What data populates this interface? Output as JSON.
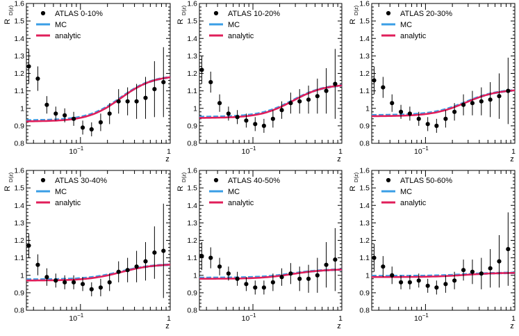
{
  "figure": {
    "ylabel_main": "R",
    "ylabel_sub": "D(z)",
    "xlabel": "z",
    "tick_base": "10",
    "tick_exp": "−1",
    "legend": {
      "data": "ATLAS",
      "mc": "MC",
      "analytic": "analytic"
    }
  },
  "colors": {
    "mc": "#3a9ee6",
    "analytic": "#e01e5a",
    "data": "#000000",
    "axes": "#000000"
  },
  "chart_data": [
    {
      "type": "scatter",
      "title": "ATLAS 0-10%",
      "centrality": "0-10%",
      "xscale": "log",
      "xlim": [
        0.025,
        1.0
      ],
      "ylim": [
        0.8,
        1.6
      ],
      "yticks": [
        0.8,
        0.9,
        1,
        1.1,
        1.2,
        1.3,
        1.4,
        1.5,
        1.6
      ],
      "ytick_labels": [
        "0.8",
        "0.9",
        "1",
        "1.1",
        "1.2",
        "1.3",
        "1.4",
        "1.5",
        "1.6"
      ],
      "xticks": [
        0.1,
        1
      ],
      "xtick_labels": [
        "",
        "1"
      ],
      "series": [
        {
          "name": "ATLAS",
          "kind": "points",
          "x": [
            0.0266,
            0.0335,
            0.0422,
            0.0531,
            0.0668,
            0.0841,
            0.106,
            0.133,
            0.168,
            0.211,
            0.266,
            0.335,
            0.422,
            0.531,
            0.668,
            0.841
          ],
          "y": [
            1.24,
            1.17,
            1.02,
            0.97,
            0.96,
            0.94,
            0.89,
            0.88,
            0.92,
            0.97,
            1.04,
            1.04,
            1.04,
            1.06,
            1.11,
            1.15
          ],
          "yerr": [
            0.1,
            0.07,
            0.05,
            0.04,
            0.04,
            0.04,
            0.04,
            0.04,
            0.05,
            0.06,
            0.07,
            0.08,
            0.1,
            0.12,
            0.16,
            0.2
          ]
        },
        {
          "name": "MC",
          "kind": "line",
          "x": [
            0.025,
            1.0
          ],
          "baseline": 0.93,
          "top": 1.19
        },
        {
          "name": "analytic",
          "kind": "line",
          "x": [
            0.025,
            1.0
          ],
          "baseline": 0.925,
          "top": 1.19
        }
      ]
    },
    {
      "type": "scatter",
      "title": "ATLAS 10-20%",
      "centrality": "10-20%",
      "xscale": "log",
      "xlim": [
        0.025,
        1.0
      ],
      "ylim": [
        0.8,
        1.6
      ],
      "yticks": [
        0.8,
        0.9,
        1,
        1.1,
        1.2,
        1.3,
        1.4,
        1.5,
        1.6
      ],
      "ytick_labels": [
        "0.8",
        "0.9",
        "1",
        "1.1",
        "1.2",
        "1.3",
        "1.4",
        "1.5",
        "1.6"
      ],
      "xticks": [
        0.1,
        1
      ],
      "xtick_labels": [
        "",
        "1"
      ],
      "series": [
        {
          "name": "ATLAS",
          "kind": "points",
          "x": [
            0.0266,
            0.0335,
            0.0422,
            0.0531,
            0.0668,
            0.0841,
            0.106,
            0.133,
            0.168,
            0.211,
            0.266,
            0.335,
            0.422,
            0.531,
            0.668,
            0.841
          ],
          "y": [
            1.22,
            1.15,
            1.03,
            0.97,
            0.95,
            0.93,
            0.91,
            0.9,
            0.94,
            0.99,
            1.03,
            1.04,
            1.05,
            1.07,
            1.1,
            1.14
          ],
          "yerr": [
            0.08,
            0.06,
            0.05,
            0.04,
            0.04,
            0.04,
            0.04,
            0.04,
            0.05,
            0.05,
            0.06,
            0.07,
            0.08,
            0.1,
            0.13,
            0.2
          ]
        },
        {
          "name": "MC",
          "kind": "line",
          "x": [
            0.025,
            1.0
          ],
          "baseline": 0.95,
          "top": 1.14
        },
        {
          "name": "analytic",
          "kind": "line",
          "x": [
            0.025,
            1.0
          ],
          "baseline": 0.945,
          "top": 1.14
        }
      ]
    },
    {
      "type": "scatter",
      "title": "ATLAS 20-30%",
      "centrality": "20-30%",
      "xscale": "log",
      "xlim": [
        0.025,
        1.0
      ],
      "ylim": [
        0.8,
        1.6
      ],
      "yticks": [
        0.8,
        0.9,
        1,
        1.1,
        1.2,
        1.3,
        1.4,
        1.5,
        1.6
      ],
      "ytick_labels": [
        "0.8",
        "0.9",
        "1",
        "1.1",
        "1.2",
        "1.3",
        "1.4",
        "1.5",
        "1.6"
      ],
      "xticks": [
        0.1,
        1
      ],
      "xtick_labels": [
        "",
        "1"
      ],
      "series": [
        {
          "name": "ATLAS",
          "kind": "points",
          "x": [
            0.0266,
            0.0335,
            0.0422,
            0.0531,
            0.0668,
            0.0841,
            0.106,
            0.133,
            0.168,
            0.211,
            0.266,
            0.335,
            0.422,
            0.531,
            0.668,
            0.841
          ],
          "y": [
            1.16,
            1.12,
            1.03,
            0.98,
            0.97,
            0.94,
            0.91,
            0.9,
            0.94,
            0.98,
            1.02,
            1.03,
            1.04,
            1.05,
            1.07,
            1.1
          ],
          "yerr": [
            0.08,
            0.06,
            0.05,
            0.04,
            0.04,
            0.04,
            0.04,
            0.04,
            0.05,
            0.05,
            0.06,
            0.07,
            0.08,
            0.1,
            0.13,
            0.19
          ]
        },
        {
          "name": "MC",
          "kind": "line",
          "x": [
            0.025,
            1.0
          ],
          "baseline": 0.96,
          "top": 1.11
        },
        {
          "name": "analytic",
          "kind": "line",
          "x": [
            0.025,
            1.0
          ],
          "baseline": 0.955,
          "top": 1.11
        }
      ]
    },
    {
      "type": "scatter",
      "title": "ATLAS 30-40%",
      "centrality": "30-40%",
      "xscale": "log",
      "xlim": [
        0.025,
        1.0
      ],
      "ylim": [
        0.8,
        1.6
      ],
      "yticks": [
        0.8,
        0.9,
        1,
        1.1,
        1.2,
        1.3,
        1.4,
        1.5,
        1.6
      ],
      "ytick_labels": [
        "0.8",
        "0.9",
        "1",
        "1.1",
        "1.2",
        "1.3",
        "1.4",
        "1.5",
        "1.6"
      ],
      "xticks": [
        0.1,
        1
      ],
      "xtick_labels": [
        "",
        "1"
      ],
      "series": [
        {
          "name": "ATLAS",
          "kind": "points",
          "x": [
            0.0266,
            0.0335,
            0.0422,
            0.0531,
            0.0668,
            0.0841,
            0.106,
            0.133,
            0.168,
            0.211,
            0.266,
            0.335,
            0.422,
            0.531,
            0.668,
            0.841
          ],
          "y": [
            1.17,
            1.06,
            0.99,
            0.97,
            0.96,
            0.96,
            0.95,
            0.92,
            0.93,
            0.96,
            1.02,
            1.03,
            1.05,
            1.08,
            1.13,
            1.14
          ],
          "yerr": [
            0.07,
            0.06,
            0.05,
            0.04,
            0.04,
            0.04,
            0.04,
            0.04,
            0.05,
            0.05,
            0.06,
            0.07,
            0.09,
            0.11,
            0.15,
            0.27
          ]
        },
        {
          "name": "MC",
          "kind": "line",
          "x": [
            0.025,
            1.0
          ],
          "baseline": 0.975,
          "top": 1.065
        },
        {
          "name": "analytic",
          "kind": "line",
          "x": [
            0.025,
            1.0
          ],
          "baseline": 0.97,
          "top": 1.065
        }
      ]
    },
    {
      "type": "scatter",
      "title": "ATLAS 40-50%",
      "centrality": "40-50%",
      "xscale": "log",
      "xlim": [
        0.025,
        1.0
      ],
      "ylim": [
        0.8,
        1.6
      ],
      "yticks": [
        0.8,
        0.9,
        1,
        1.1,
        1.2,
        1.3,
        1.4,
        1.5,
        1.6
      ],
      "ytick_labels": [
        "0.8",
        "0.9",
        "1",
        "1.1",
        "1.2",
        "1.3",
        "1.4",
        "1.5",
        "1.6"
      ],
      "xticks": [
        0.1,
        1
      ],
      "xtick_labels": [
        "",
        "1"
      ],
      "series": [
        {
          "name": "ATLAS",
          "kind": "points",
          "x": [
            0.0266,
            0.0335,
            0.0422,
            0.0531,
            0.0668,
            0.0841,
            0.106,
            0.133,
            0.168,
            0.211,
            0.266,
            0.335,
            0.422,
            0.531,
            0.668,
            0.841
          ],
          "y": [
            1.11,
            1.1,
            1.05,
            1.01,
            0.98,
            0.95,
            0.93,
            0.93,
            0.96,
            0.99,
            1.01,
            0.98,
            0.98,
            1.0,
            1.06,
            1.09
          ],
          "yerr": [
            0.08,
            0.06,
            0.05,
            0.04,
            0.04,
            0.04,
            0.04,
            0.04,
            0.05,
            0.05,
            0.06,
            0.07,
            0.08,
            0.1,
            0.13,
            0.18
          ]
        },
        {
          "name": "MC",
          "kind": "line",
          "x": [
            0.025,
            1.0
          ],
          "baseline": 0.985,
          "top": 1.035
        },
        {
          "name": "analytic",
          "kind": "line",
          "x": [
            0.025,
            1.0
          ],
          "baseline": 0.98,
          "top": 1.035
        }
      ]
    },
    {
      "type": "scatter",
      "title": "ATLAS 50-60%",
      "centrality": "50-60%",
      "xscale": "log",
      "xlim": [
        0.025,
        1.0
      ],
      "ylim": [
        0.8,
        1.6
      ],
      "yticks": [
        0.8,
        0.9,
        1,
        1.1,
        1.2,
        1.3,
        1.4,
        1.5,
        1.6
      ],
      "ytick_labels": [
        "0.8",
        "0.9",
        "1",
        "1.1",
        "1.2",
        "1.3",
        "1.4",
        "1.5",
        "1.6"
      ],
      "xticks": [
        0.1,
        1
      ],
      "xtick_labels": [
        "",
        "1"
      ],
      "series": [
        {
          "name": "ATLAS",
          "kind": "points",
          "x": [
            0.0266,
            0.0335,
            0.0422,
            0.0531,
            0.0668,
            0.0841,
            0.106,
            0.133,
            0.168,
            0.211,
            0.266,
            0.335,
            0.422,
            0.531,
            0.668,
            0.841
          ],
          "y": [
            1.1,
            1.05,
            1.0,
            0.96,
            0.96,
            0.97,
            0.94,
            0.93,
            0.95,
            0.97,
            1.03,
            1.02,
            1.01,
            1.04,
            1.08,
            1.15
          ],
          "yerr": [
            0.08,
            0.06,
            0.05,
            0.04,
            0.04,
            0.04,
            0.04,
            0.04,
            0.05,
            0.05,
            0.06,
            0.07,
            0.09,
            0.11,
            0.15,
            0.21
          ]
        },
        {
          "name": "MC",
          "kind": "line",
          "x": [
            0.025,
            1.0
          ],
          "baseline": 0.995,
          "top": 1.015
        },
        {
          "name": "analytic",
          "kind": "line",
          "x": [
            0.025,
            1.0
          ],
          "baseline": 0.99,
          "top": 1.015
        }
      ]
    }
  ]
}
